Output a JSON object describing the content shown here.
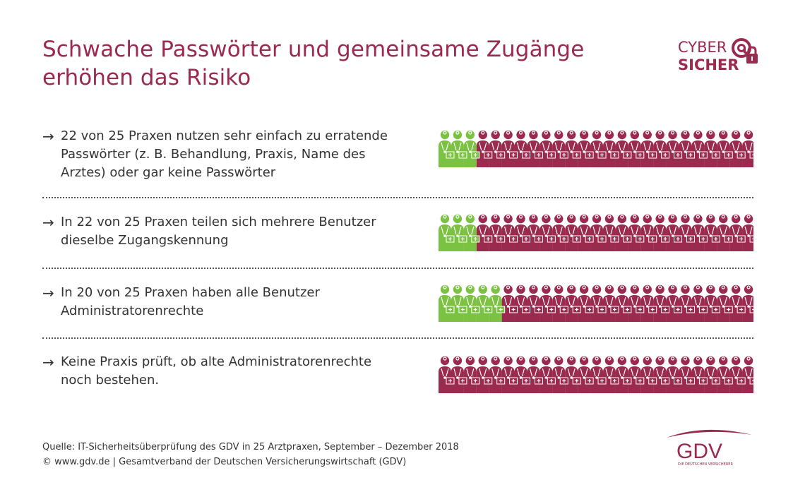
{
  "title_lines": [
    "Schwache Passwörter und gemeinsame Zugänge",
    "erhöhen das Risiko"
  ],
  "logo_cyber": {
    "line1": "CYBER",
    "line2": "SICHER"
  },
  "arrow_glyph": "→",
  "rows": [
    {
      "lines": [
        "22 von 25 Praxen nutzen sehr einfach zu erratende",
        "Passwörter (z. B. Behandlung, Praxis, Name des",
        "Arztes) oder gar keine Passwörter"
      ],
      "green": 3,
      "total": 25
    },
    {
      "lines": [
        "In 22 von 25 Praxen teilen sich mehrere Benutzer",
        "dieselbe Zugangskennung"
      ],
      "green": 3,
      "total": 25
    },
    {
      "lines": [
        "In 20 von 25 Praxen haben alle Benutzer",
        "Administratorenrechte"
      ],
      "green": 5,
      "total": 25
    },
    {
      "lines": [
        "Keine Praxis prüft, ob alte Administratorenrechte",
        "noch bestehen."
      ],
      "green": 0,
      "total": 25
    }
  ],
  "footer": {
    "source": "Quelle: IT-Sicherheitsüberprüfung des GDV in 25 Arztpraxen, September – Dezember 2018",
    "copyright": "© www.gdv.de | Gesamtverband der Deutschen Versicherungswirtschaft (GDV)"
  },
  "logo_gdv": {
    "name": "GDV",
    "tagline": "DIE DEUTSCHEN VERSICHERER"
  },
  "colors": {
    "accent": "#9b2a4f",
    "green": "#7cc242",
    "text": "#333333"
  }
}
